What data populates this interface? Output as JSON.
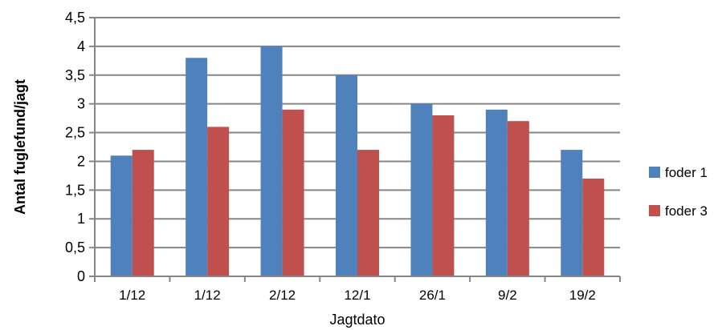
{
  "chart_data": {
    "type": "bar",
    "title": "",
    "xlabel": "Jagtdato",
    "ylabel": "Antal fuglefund/jagt",
    "categories": [
      "1/12",
      "1/12",
      "2/12",
      "12/1",
      "26/1",
      "9/2",
      "19/2"
    ],
    "series": [
      {
        "name": "foder 1",
        "color": "#4F81BD",
        "values": [
          2.1,
          3.8,
          4.0,
          3.5,
          3.0,
          2.9,
          2.2
        ]
      },
      {
        "name": "foder 3",
        "color": "#C0504D",
        "values": [
          2.2,
          2.6,
          2.9,
          2.2,
          2.8,
          2.7,
          1.7
        ]
      }
    ],
    "yticks": [
      "0",
      "0,5",
      "1",
      "1,5",
      "2",
      "2,5",
      "3",
      "3,5",
      "4",
      "4,5"
    ],
    "ylim": [
      0,
      4.5
    ],
    "ystep": 0.5,
    "grid": true,
    "legend_position": "right"
  }
}
